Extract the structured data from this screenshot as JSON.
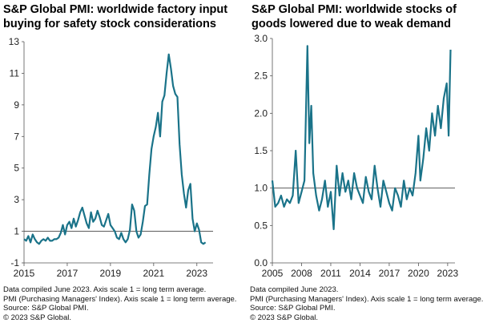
{
  "chart_data": [
    {
      "type": "line",
      "title": "S&P Global PMI: worldwide factory input buying for safety stock considerations",
      "title_lines": [
        "S&P Global PMI: worldwide factory input",
        "buying for safety stock considerations"
      ],
      "xlim": [
        2015.0,
        2023.75
      ],
      "ylim": [
        -1,
        13
      ],
      "yticks": [
        -1,
        1,
        3,
        5,
        7,
        9,
        11,
        13
      ],
      "ytick_labels": [
        "-1",
        "1",
        "3",
        "5",
        "7",
        "9",
        "11",
        "13"
      ],
      "xticks": [
        2015,
        2017,
        2019,
        2021,
        2023
      ],
      "xtick_labels": [
        "2015",
        "2017",
        "2019",
        "2021",
        "2023"
      ],
      "reference_line": 1,
      "line_color": "#1a7389",
      "series": [
        {
          "x": [
            2015.0,
            2015.1,
            2015.2,
            2015.3,
            2015.4,
            2015.5,
            2015.6,
            2015.7,
            2015.8,
            2015.9,
            2016.0,
            2016.1,
            2016.2,
            2016.3,
            2016.4,
            2016.5,
            2016.6,
            2016.7,
            2016.8,
            2016.9,
            2017.0,
            2017.1,
            2017.2,
            2017.3,
            2017.4,
            2017.5,
            2017.6,
            2017.7,
            2017.8,
            2017.9,
            2018.0,
            2018.1,
            2018.2,
            2018.3,
            2018.4,
            2018.5,
            2018.6,
            2018.7,
            2018.8,
            2018.9,
            2019.0,
            2019.1,
            2019.2,
            2019.3,
            2019.4,
            2019.5,
            2019.6,
            2019.7,
            2019.8,
            2019.9,
            2020.0,
            2020.1,
            2020.2,
            2020.3,
            2020.4,
            2020.5,
            2020.6,
            2020.7,
            2020.8,
            2020.9,
            2021.0,
            2021.1,
            2021.2,
            2021.3,
            2021.4,
            2021.5,
            2021.6,
            2021.7,
            2021.8,
            2021.9,
            2022.0,
            2022.1,
            2022.2,
            2022.3,
            2022.4,
            2022.5,
            2022.6,
            2022.7,
            2022.8,
            2022.9,
            2023.0,
            2023.1,
            2023.2,
            2023.3,
            2023.4
          ],
          "values": [
            0.5,
            0.4,
            0.7,
            0.3,
            0.8,
            0.5,
            0.3,
            0.2,
            0.4,
            0.5,
            0.4,
            0.6,
            0.4,
            0.4,
            0.5,
            0.5,
            0.6,
            0.9,
            1.4,
            0.8,
            1.4,
            1.6,
            1.2,
            1.8,
            1.3,
            1.7,
            2.2,
            2.5,
            2.0,
            1.5,
            1.2,
            2.2,
            1.6,
            1.8,
            2.3,
            1.9,
            1.4,
            1.3,
            1.7,
            2.1,
            1.4,
            1.2,
            1.0,
            0.6,
            0.5,
            0.9,
            0.5,
            0.3,
            0.5,
            1.1,
            2.7,
            2.3,
            1.0,
            0.6,
            0.8,
            1.6,
            2.6,
            2.7,
            4.6,
            6.2,
            7.0,
            7.6,
            8.5,
            7.0,
            9.2,
            9.6,
            11.0,
            12.2,
            11.3,
            10.2,
            9.7,
            9.5,
            6.5,
            4.6,
            3.4,
            2.5,
            3.6,
            4.0,
            1.8,
            1.0,
            1.5,
            1.1,
            0.3,
            0.2,
            0.3
          ]
        }
      ]
    },
    {
      "type": "line",
      "title": "S&P Global PMI: worldwide stocks of goods lowered due to weak demand",
      "title_lines": [
        "S&P Global PMI: worldwide stocks of",
        "goods lowered due to weak demand"
      ],
      "xlim": [
        2005.0,
        2023.75
      ],
      "ylim": [
        0.0,
        3.0
      ],
      "yticks": [
        0.0,
        0.5,
        1.0,
        1.5,
        2.0,
        2.5,
        3.0
      ],
      "ytick_labels": [
        "0.0",
        "0.5",
        "1.0",
        "1.5",
        "2.0",
        "2.5",
        "3.0"
      ],
      "xticks": [
        2005,
        2008,
        2011,
        2014,
        2017,
        2020,
        2023
      ],
      "xtick_labels": [
        "2005",
        "2008",
        "2011",
        "2014",
        "2017",
        "2020",
        "2023"
      ],
      "reference_line": 1.0,
      "line_color": "#1a7389",
      "series": [
        {
          "x": [
            2005.0,
            2005.3,
            2005.6,
            2005.9,
            2006.2,
            2006.5,
            2006.8,
            2007.1,
            2007.4,
            2007.7,
            2008.0,
            2008.3,
            2008.6,
            2008.8,
            2009.0,
            2009.2,
            2009.5,
            2009.8,
            2010.1,
            2010.4,
            2010.7,
            2011.0,
            2011.3,
            2011.6,
            2011.9,
            2012.2,
            2012.5,
            2012.8,
            2013.1,
            2013.4,
            2013.7,
            2014.0,
            2014.3,
            2014.6,
            2014.9,
            2015.2,
            2015.5,
            2015.8,
            2016.1,
            2016.4,
            2016.7,
            2017.0,
            2017.3,
            2017.6,
            2017.9,
            2018.2,
            2018.5,
            2018.8,
            2019.1,
            2019.4,
            2019.7,
            2020.0,
            2020.2,
            2020.5,
            2020.8,
            2021.1,
            2021.4,
            2021.7,
            2022.0,
            2022.3,
            2022.6,
            2022.9,
            2023.1,
            2023.3
          ],
          "values": [
            1.1,
            0.75,
            0.8,
            0.9,
            0.75,
            0.85,
            0.8,
            0.9,
            1.5,
            0.8,
            0.95,
            1.1,
            2.9,
            1.6,
            2.1,
            1.2,
            0.9,
            0.7,
            0.85,
            1.1,
            0.75,
            0.95,
            0.45,
            1.3,
            0.9,
            1.2,
            0.95,
            1.1,
            0.85,
            1.2,
            1.0,
            0.9,
            0.8,
            1.15,
            0.95,
            0.85,
            1.3,
            1.0,
            0.75,
            1.1,
            0.95,
            0.8,
            0.7,
            1.0,
            0.9,
            0.75,
            1.1,
            0.85,
            1.0,
            0.9,
            1.2,
            1.7,
            1.1,
            1.4,
            1.8,
            1.5,
            2.0,
            1.7,
            2.1,
            1.8,
            2.2,
            2.4,
            1.7,
            2.85
          ]
        }
      ]
    }
  ],
  "left_notes": [
    "Data compiled June 2023. Axis scale 1 = long term average.",
    "PMI (Purchasing Managers' Index). Axis scale 1 = long term average.",
    "Source: S&P Global PMI.",
    "© 2023 S&P Global."
  ],
  "right_notes": [
    "Data compiled June 2023.",
    "PMI (Purchasing Managers' Index). Axis scale 1 = long term average.",
    "Source: S&P Global PMI.",
    "© 2023 S&P Global."
  ]
}
